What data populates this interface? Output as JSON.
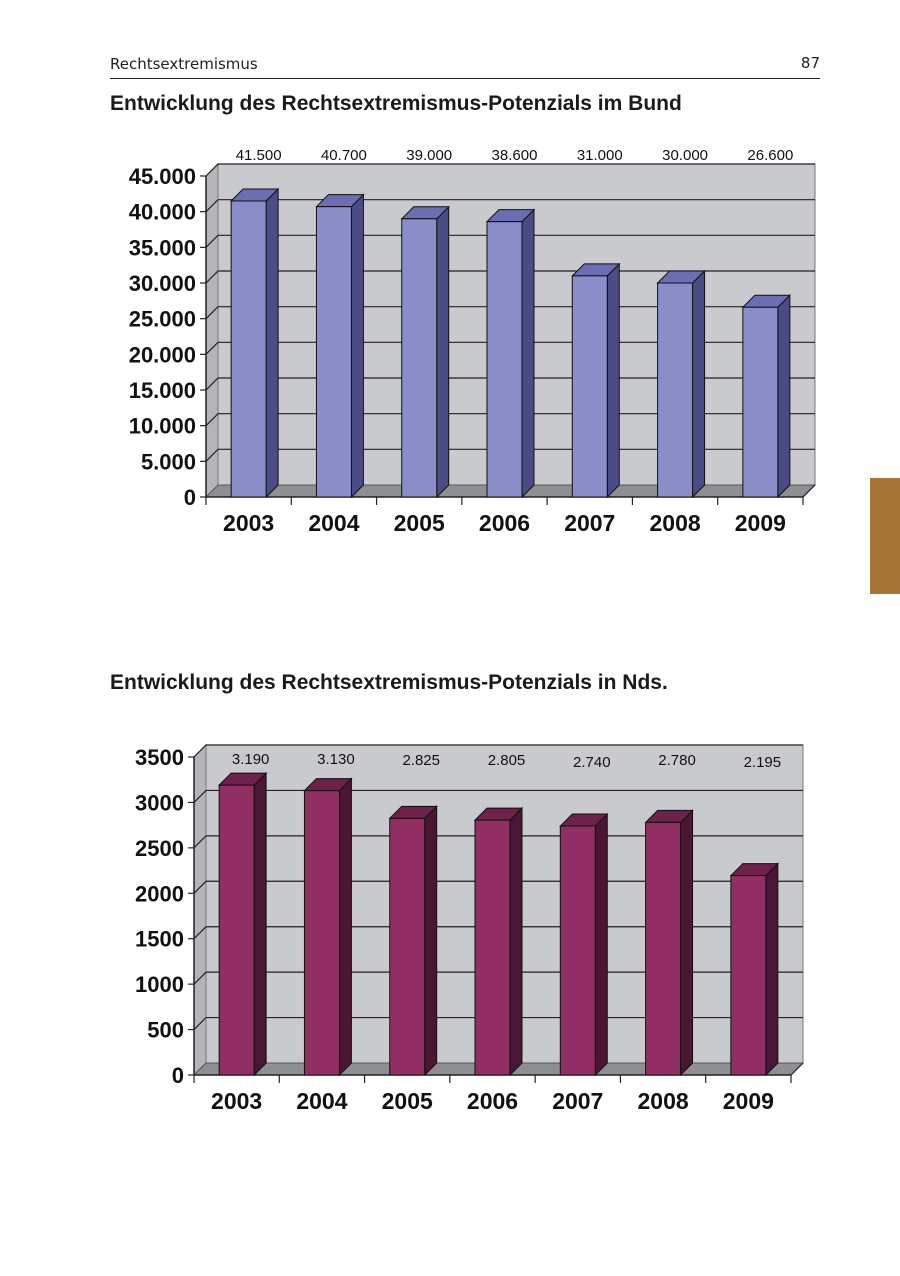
{
  "header": {
    "running_title": "Rechtsextremismus",
    "page_number": "87"
  },
  "thumb_tab_color": "#A57636",
  "charts": {
    "bund": {
      "bar_color": "#8A8DC8",
      "bar_side_color": "#4A4C86",
      "bar_top_color": "#6B6EB2",
      "plot_background": "#C9CACE"
    },
    "nds": {
      "bar_color": "#912F65",
      "bar_side_color": "#4B1534",
      "bar_top_color": "#6E2149",
      "plot_background": "#C9CACE"
    }
  },
  "chart_data": [
    {
      "type": "bar",
      "title": "Entwicklung des Rechtsextremismus-Potenzials im Bund",
      "categories": [
        "2003",
        "2004",
        "2005",
        "2006",
        "2007",
        "2008",
        "2009"
      ],
      "values": [
        41500,
        40700,
        39000,
        38600,
        31000,
        30000,
        26600
      ],
      "value_labels": [
        "41.500",
        "40.700",
        "39.000",
        "38.600",
        "31.000",
        "30.000",
        "26.600"
      ],
      "ylim": [
        0,
        45000
      ],
      "y_ticks": [
        "0",
        "5.000",
        "10.000",
        "15.000",
        "20.000",
        "25.000",
        "30.000",
        "35.000",
        "40.000",
        "45.000"
      ],
      "grid": true,
      "legend": "none"
    },
    {
      "type": "bar",
      "title": "Entwicklung des Rechtsextremismus-Potenzials in Nds.",
      "categories": [
        "2003",
        "2004",
        "2005",
        "2006",
        "2007",
        "2008",
        "2009"
      ],
      "values": [
        3190,
        3130,
        2825,
        2805,
        2740,
        2780,
        2195
      ],
      "value_labels": [
        "3.190",
        "3.130",
        "2.825",
        "2.805",
        "2.740",
        "2.780",
        "2.195"
      ],
      "ylim": [
        0,
        3500
      ],
      "y_ticks": [
        "0",
        "500",
        "1000",
        "1500",
        "2000",
        "2500",
        "3000",
        "3500"
      ],
      "grid": true,
      "legend": "none"
    }
  ]
}
